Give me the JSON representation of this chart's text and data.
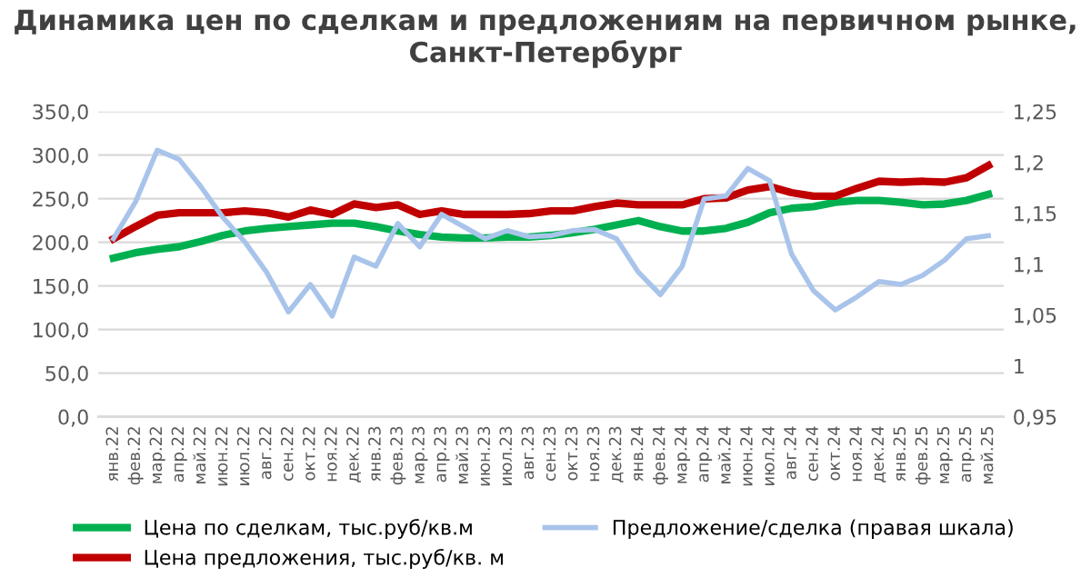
{
  "chart_data": {
    "type": "line",
    "title": "Динамика цен по сделкам и предложениям на первичном рынке, Санкт-Петербург",
    "categories": [
      "янв.22",
      "фев.22",
      "мар.22",
      "апр.22",
      "май.22",
      "июн.22",
      "июл.22",
      "авг.22",
      "сен.22",
      "окт.22",
      "ноя.22",
      "дек.22",
      "янв.23",
      "фев.23",
      "мар.23",
      "апр.23",
      "май.23",
      "июн.23",
      "июл.23",
      "авг.23",
      "сен.23",
      "окт.23",
      "ноя.23",
      "дек.23",
      "янв.24",
      "фев.24",
      "мар.24",
      "апр.24",
      "май.24",
      "июн.24",
      "июл.24",
      "авг.24",
      "сен.24",
      "окт.24",
      "ноя.24",
      "дек.24",
      "янв.25",
      "фев.25",
      "мар.25",
      "апр.25",
      "май.25"
    ],
    "series": [
      {
        "name": "Цена по сделкам, тыс.руб/кв.м",
        "color": "#00b050",
        "values": [
          182,
          188,
          192,
          195,
          201,
          208,
          213,
          216,
          218,
          220,
          222,
          222,
          218,
          213,
          209,
          206,
          205,
          205,
          206,
          206,
          208,
          211,
          215,
          220,
          225,
          218,
          213,
          213,
          216,
          223,
          234,
          239,
          241,
          246,
          248,
          248,
          246,
          243,
          244,
          248,
          255
        ]
      },
      {
        "name": "Цена предложения, тыс.руб/кв. м",
        "color": "#c00000",
        "values": [
          204,
          218,
          231,
          234,
          234,
          234,
          236,
          234,
          229,
          237,
          232,
          244,
          240,
          243,
          232,
          236,
          232,
          232,
          232,
          233,
          236,
          236,
          241,
          245,
          243,
          243,
          243,
          250,
          251,
          260,
          264,
          257,
          253,
          253,
          262,
          270,
          269,
          270,
          269,
          274,
          288
        ]
      },
      {
        "name": "Предложение/сделка (правая шкала)",
        "color": "#a9c4eb",
        "axis": "y2",
        "values": [
          1.125,
          1.161,
          1.212,
          1.203,
          1.176,
          1.146,
          1.122,
          1.092,
          1.053,
          1.08,
          1.049,
          1.107,
          1.098,
          1.14,
          1.117,
          1.149,
          1.137,
          1.125,
          1.133,
          1.127,
          1.128,
          1.133,
          1.134,
          1.125,
          1.092,
          1.07,
          1.098,
          1.164,
          1.167,
          1.194,
          1.182,
          1.11,
          1.074,
          1.055,
          1.068,
          1.083,
          1.08,
          1.089,
          1.104,
          1.125,
          1.128
        ]
      }
    ],
    "ylim": [
      0,
      350
    ],
    "yticks": [
      {
        "value": 0,
        "label": "0,0"
      },
      {
        "value": 50,
        "label": "50,0"
      },
      {
        "value": 100,
        "label": "100,0"
      },
      {
        "value": 150,
        "label": "150,0"
      },
      {
        "value": 200,
        "label": "200,0"
      },
      {
        "value": 250,
        "label": "250,0"
      },
      {
        "value": 300,
        "label": "300,0"
      },
      {
        "value": 350,
        "label": "350,0"
      }
    ],
    "y2lim": [
      0.95,
      1.25
    ],
    "y2ticks": [
      {
        "value": 0.95,
        "label": "0,95"
      },
      1,
      {
        "value": 1.05,
        "label": "1,05"
      },
      {
        "value": 1.1,
        "label": "1,1"
      },
      {
        "value": 1.15,
        "label": "1,15"
      },
      {
        "value": 1.2,
        "label": "1,2"
      },
      {
        "value": 1.25,
        "label": "1,25"
      }
    ],
    "grid": "y",
    "legend": "bottom",
    "marker": "none",
    "line_style": "solid"
  }
}
